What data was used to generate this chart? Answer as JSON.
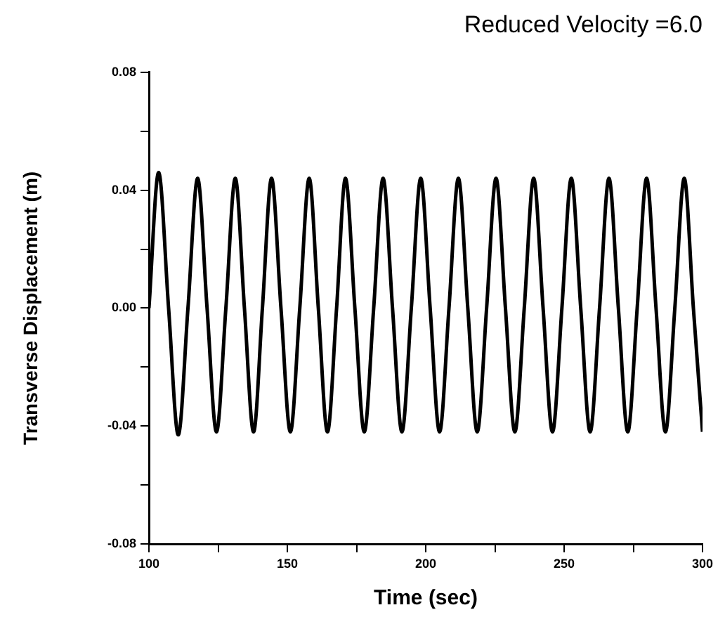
{
  "chart_data": {
    "type": "line",
    "title": "Reduced Velocity =6.0",
    "xlabel": "Time (sec)",
    "ylabel": "Transverse Displacement (m)",
    "xlim": [
      100,
      300
    ],
    "ylim": [
      -0.08,
      0.08
    ],
    "xticks": [
      100,
      {
        "value": 125,
        "label": null
      },
      150,
      {
        "value": 175,
        "label": null
      },
      200,
      {
        "value": 225,
        "label": null
      },
      250,
      {
        "value": 275,
        "label": null
      },
      300
    ],
    "yticks": [
      -0.08,
      {
        "value": -0.06,
        "label": null
      },
      -0.04,
      {
        "value": -0.02,
        "label": null
      },
      {
        "value": 0,
        "label": "0.00"
      },
      {
        "value": 0.02,
        "label": null
      },
      0.04,
      {
        "value": 0.06,
        "label": null
      },
      0.08
    ],
    "grid": false,
    "legend": false,
    "marker": "none",
    "line_style": "solid",
    "series": [
      {
        "color": "#000000",
        "x": [
          100,
          103.5,
          107.1,
          110.6,
          114.1,
          117.6,
          121.0,
          124.4,
          127.8,
          131.2,
          134.5,
          137.8,
          141.0,
          144.3,
          147.7,
          151.1,
          154.5,
          157.9,
          161.2,
          164.5,
          167.8,
          171.0,
          174.4,
          177.8,
          181.2,
          184.6,
          188.0,
          191.4,
          194.8,
          198.2,
          201.6,
          205.0,
          208.4,
          211.8,
          215.2,
          218.6,
          222.0,
          225.4,
          228.8,
          232.2,
          235.6,
          239.0,
          242.4,
          245.8,
          249.2,
          252.6,
          256.0,
          259.4,
          262.8,
          266.2,
          269.6,
          273.0,
          276.4,
          279.8,
          283.2,
          286.6,
          290.0,
          293.4,
          296.7,
          300
        ],
        "values": [
          0,
          0.046,
          0,
          -0.043,
          0,
          0.044,
          0,
          -0.042,
          0,
          0.044,
          0,
          -0.042,
          0,
          0.044,
          0,
          -0.042,
          0,
          0.044,
          0,
          -0.042,
          0,
          0.044,
          0,
          -0.042,
          0,
          0.044,
          0,
          -0.042,
          0,
          0.044,
          0,
          -0.042,
          0,
          0.044,
          0,
          -0.042,
          0,
          0.044,
          0,
          -0.042,
          0,
          0.044,
          0,
          -0.042,
          0,
          0.044,
          0,
          -0.042,
          0,
          0.044,
          0,
          -0.042,
          0,
          0.044,
          0,
          -0.042,
          0,
          0.044,
          0,
          -0.042
        ]
      }
    ]
  }
}
